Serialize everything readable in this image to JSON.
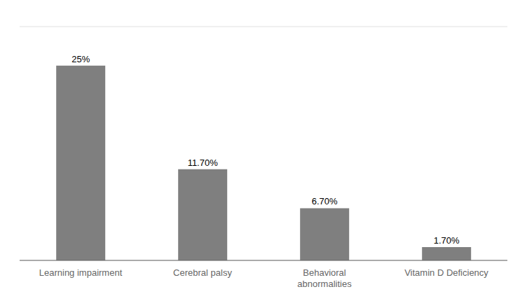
{
  "chart_data": {
    "type": "bar",
    "categories": [
      "Learning impairment",
      "Cerebral palsy",
      "Behavioral\nabnormalities",
      "Vitamin D Deficiency"
    ],
    "values": [
      25,
      11.7,
      6.7,
      1.7
    ],
    "value_labels": [
      "25%",
      "11.70%",
      "6.70%",
      "1.70%"
    ],
    "data_labels": true,
    "color": "#7f7f7f",
    "ylim": [
      0,
      30
    ],
    "yticks": [
      0,
      5,
      10,
      15,
      20,
      25,
      30
    ],
    "grid": true,
    "tick_labels": "x"
  }
}
